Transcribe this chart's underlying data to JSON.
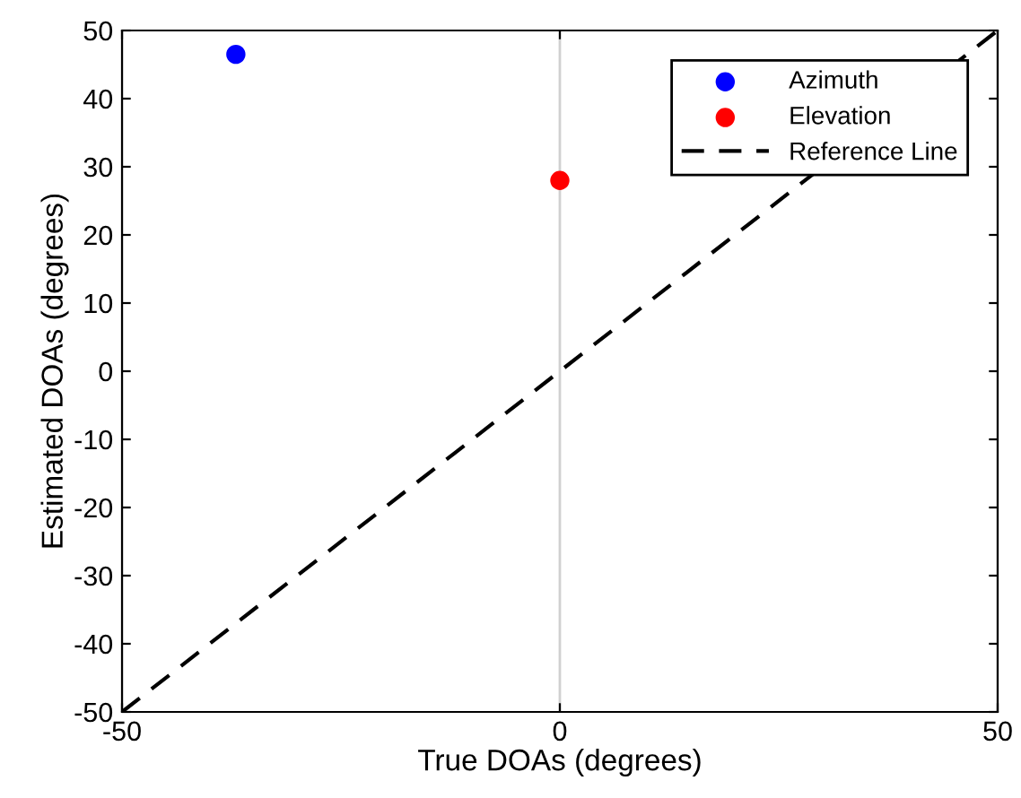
{
  "chart_data": {
    "type": "scatter",
    "xlabel": "True DOAs (degrees)",
    "ylabel": "Estimated DOAs (degrees)",
    "xlim": [
      -50,
      50
    ],
    "xticks": [
      -50,
      0,
      50
    ],
    "ylim": [
      -50,
      50
    ],
    "yticks": [
      -50,
      -40,
      -30,
      -20,
      -10,
      0,
      10,
      20,
      30,
      40,
      50
    ],
    "grid": "x",
    "legend": "top right",
    "series": [
      {
        "name": "Azimuth",
        "color": "#0000ff",
        "marker": "circle",
        "x": [
          -37
        ],
        "values": [
          46.5
        ]
      },
      {
        "name": "Elevation",
        "color": "#ff0000",
        "marker": "circle",
        "x": [
          0
        ],
        "values": [
          28
        ]
      },
      {
        "name": "Reference Line",
        "type": "line",
        "color": "#000000",
        "line_style": "dashed",
        "marker": "none",
        "x": [
          -50,
          50
        ],
        "values": [
          -50,
          50
        ]
      }
    ]
  }
}
